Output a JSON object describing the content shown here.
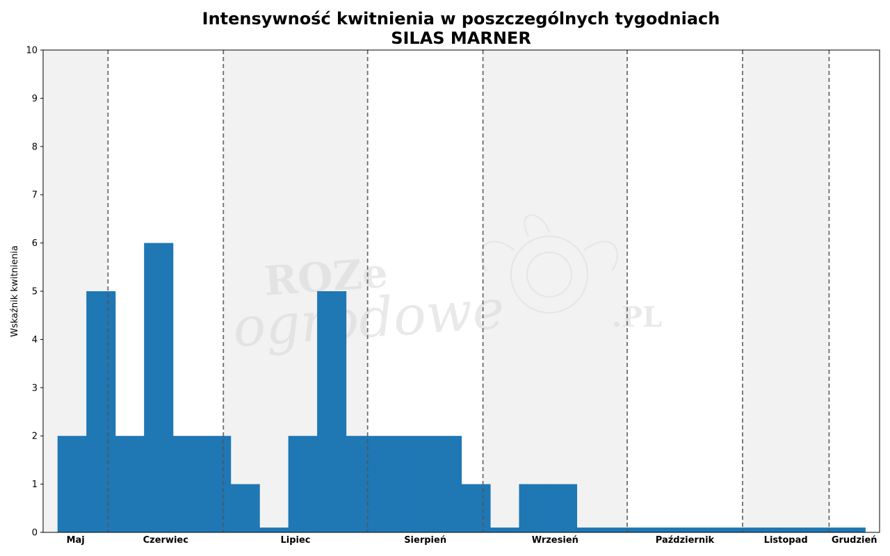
{
  "chart_data": {
    "type": "bar",
    "title": "Intensywność kwitnienia w poszczególnych tygodniach",
    "subtitle": "SILAS MARNER",
    "xlabel": "",
    "ylabel": "Wskaźnik kwitnienia",
    "ylim": [
      0,
      10
    ],
    "yticks": [
      "0",
      "1",
      "2",
      "3",
      "4",
      "5",
      "6",
      "7",
      "8",
      "9",
      "10"
    ],
    "grid": false,
    "week_range": [
      19,
      48
    ],
    "series": [
      {
        "values": [
          {
            "week": 20,
            "value": 2
          },
          {
            "week": 21,
            "value": 5
          },
          {
            "week": 22,
            "value": 2
          },
          {
            "week": 23,
            "value": 6
          },
          {
            "week": 24,
            "value": 2
          },
          {
            "week": 25,
            "value": 2
          },
          {
            "week": 26,
            "value": 1
          },
          {
            "week": 27,
            "value": 0.1
          },
          {
            "week": 28,
            "value": 2
          },
          {
            "week": 29,
            "value": 5
          },
          {
            "week": 30,
            "value": 2
          },
          {
            "week": 31,
            "value": 2
          },
          {
            "week": 32,
            "value": 2
          },
          {
            "week": 33,
            "value": 2
          },
          {
            "week": 34,
            "value": 1
          },
          {
            "week": 35,
            "value": 0.1
          },
          {
            "week": 36,
            "value": 1
          },
          {
            "week": 37,
            "value": 1
          },
          {
            "week": 38,
            "value": 0.1
          },
          {
            "week": 39,
            "value": 0.1
          },
          {
            "week": 40,
            "value": 0.1
          },
          {
            "week": 41,
            "value": 0.1
          },
          {
            "week": 42,
            "value": 0.1
          },
          {
            "week": 43,
            "value": 0.1
          },
          {
            "week": 44,
            "value": 0.1
          },
          {
            "week": 45,
            "value": 0.1
          },
          {
            "week": 46,
            "value": 0.1
          },
          {
            "week": 47,
            "value": 0.1
          }
        ],
        "color": "#1f77b4"
      }
    ],
    "months": [
      {
        "name": "Maj",
        "start_week": 19,
        "end_week": 21.25,
        "shaded": true
      },
      {
        "name": "Czerwiec",
        "start_week": 21.25,
        "end_week": 25.25,
        "shaded": false
      },
      {
        "name": "Lipiec",
        "start_week": 25.25,
        "end_week": 30.25,
        "shaded": true
      },
      {
        "name": "Sierpień",
        "start_week": 30.25,
        "end_week": 34.25,
        "shaded": false
      },
      {
        "name": "Wrzesień",
        "start_week": 34.25,
        "end_week": 39.25,
        "shaded": true
      },
      {
        "name": "Październik",
        "start_week": 39.25,
        "end_week": 43.25,
        "shaded": false
      },
      {
        "name": "Listopad",
        "start_week": 43.25,
        "end_week": 46.25,
        "shaded": true
      },
      {
        "name": "Grudzień",
        "start_week": 46.25,
        "end_week": 48,
        "shaded": false
      }
    ],
    "colors": {
      "bar": "#1f77b4",
      "shade": "#f2f2f2",
      "divider": "#555555"
    }
  },
  "watermark": {
    "line1": "ROZe",
    "line2": "ogrodowe",
    "line3": ".PL"
  }
}
